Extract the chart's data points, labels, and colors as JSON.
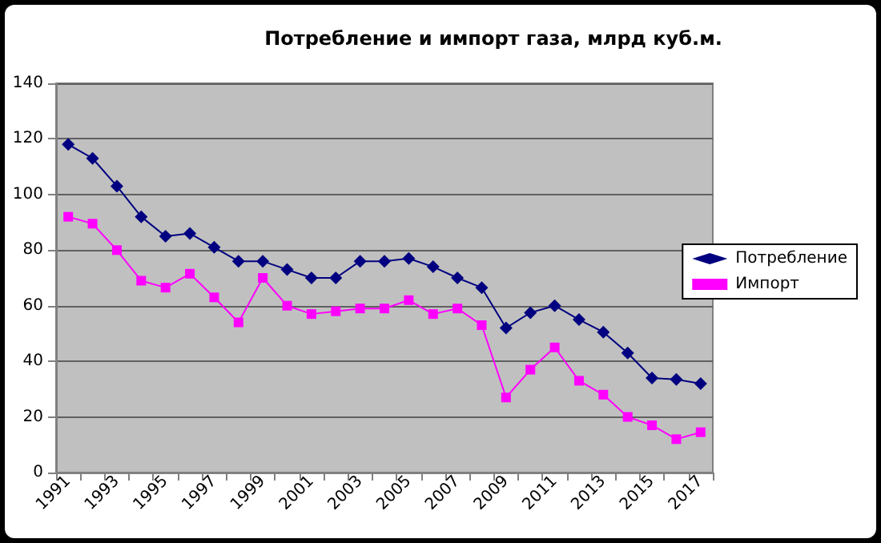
{
  "chart_data": {
    "type": "line",
    "title": "Потребление и импорт газа, млрд куб.м.",
    "categories": [
      "1991",
      null,
      "1993",
      null,
      "1995",
      null,
      "1997",
      null,
      "1999",
      null,
      "2001",
      null,
      "2003",
      null,
      "2005",
      null,
      "2007",
      null,
      "2009",
      null,
      "2011",
      null,
      "2013",
      null,
      "2015",
      null,
      "2017"
    ],
    "series": [
      {
        "name": "Потребление",
        "color": "#000080",
        "marker": "diamond",
        "values": [
          118,
          113,
          103,
          92,
          85,
          86,
          81,
          76,
          76,
          73,
          70,
          70,
          76,
          76,
          77,
          74,
          70,
          66.5,
          52,
          57.5,
          60,
          55,
          50.5,
          43,
          34,
          33.5,
          32
        ]
      },
      {
        "name": "Импорт",
        "color": "#ff00ff",
        "marker": "square",
        "values": [
          92,
          89.5,
          80,
          69,
          66.5,
          71.5,
          63,
          54,
          70,
          60,
          57,
          58,
          59,
          59,
          62,
          57,
          59,
          53,
          27,
          37,
          45,
          33,
          28,
          20,
          17,
          12,
          14.5
        ]
      }
    ],
    "ylim": [
      0,
      140
    ],
    "yticks": [
      0,
      20,
      40,
      60,
      80,
      100,
      120,
      140
    ],
    "grid": "y",
    "legend": "right"
  }
}
